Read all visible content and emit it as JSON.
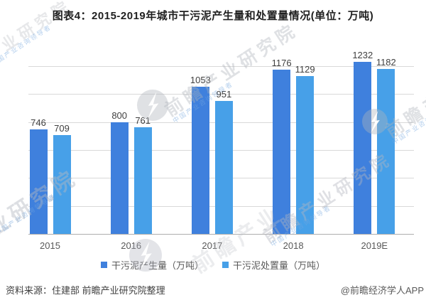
{
  "title": "图表4：2015-2019年城市干污泥产生量和处置量情况(单位：万吨)",
  "legend": [
    {
      "label": "干污泥产生量（万吨）",
      "color": "#3f80dd"
    },
    {
      "label": "干污泥处置量（万吨）",
      "color": "#47a0e8"
    }
  ],
  "footer": {
    "source": "资料来源：住建部 前瞻产业研究院整理",
    "credit": "@前瞻经济学人APP"
  },
  "watermark": {
    "brand": "前瞻产业研究院",
    "tagline": "中国产业咨询领导者",
    "fragments": {
      "top_left": "产业研究院",
      "bottom_left": "业研究院",
      "bottom_center": "前瞻产业",
      "bottom_right": "前瞻产业研究院"
    },
    "logo_name": "qianzhan-lightning-logo"
  },
  "colors": {
    "series1": "#3f80dd",
    "series2": "#47a0e8",
    "gridline": "#d9d9d9",
    "axis": "#aeaeae",
    "value_label": "#3f3f3f",
    "axis_label": "#595959"
  },
  "chart_data": {
    "type": "bar",
    "title": "图表4：2015-2019年城市干污泥产生量和处置量情况(单位：万吨)",
    "categories": [
      "2015",
      "2016",
      "2017",
      "2018",
      "2019E"
    ],
    "series": [
      {
        "name": "干污泥产生量（万吨）",
        "color": "#3f80dd",
        "values": [
          746,
          800,
          1053,
          1176,
          1232
        ]
      },
      {
        "name": "干污泥处置量（万吨）",
        "color": "#47a0e8",
        "values": [
          709,
          761,
          951,
          1129,
          1182
        ]
      }
    ],
    "xlabel": "",
    "ylabel": "",
    "unit": "万吨",
    "ylim": [
      0,
      1300
    ],
    "gridlines": [
      0,
      200,
      400,
      600,
      800,
      1000,
      1200
    ],
    "y_axis_tick_labels_visible": false,
    "grid": true,
    "legend_position": "bottom",
    "value_labels_visible": true
  }
}
